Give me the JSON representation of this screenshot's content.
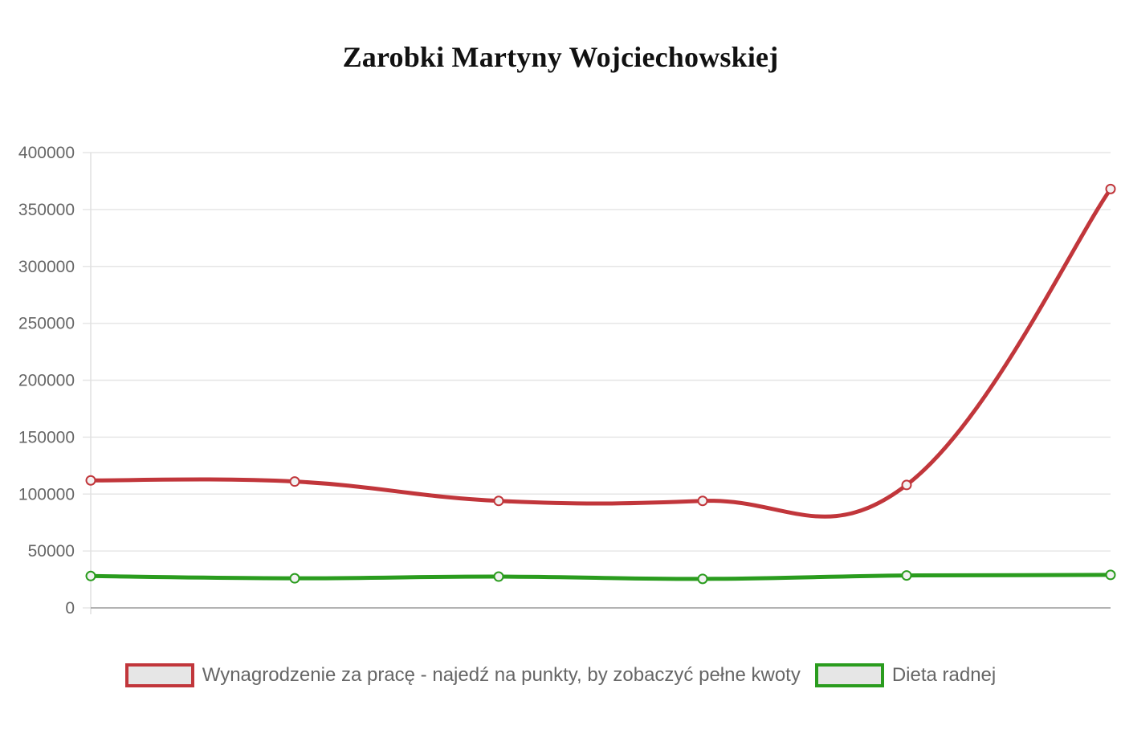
{
  "chart_data": {
    "type": "line",
    "title": "Zarobki Martyny Wojciechowskiej",
    "xlabel": "",
    "ylabel": "",
    "ylim": [
      0,
      400000
    ],
    "yticks": [
      "0",
      "50000",
      "100000",
      "150000",
      "200000",
      "250000",
      "300000",
      "350000",
      "400000"
    ],
    "x": [
      "",
      "",
      "",
      "",
      "",
      ""
    ],
    "grid": true,
    "legend_position": "bottom",
    "series": [
      {
        "name": "Wynagrodzenie za pracę - najedź na punkty, by zobaczyć pełne kwoty",
        "color": "#c1363b",
        "values": [
          112000,
          111000,
          94000,
          94000,
          108000,
          368000
        ]
      },
      {
        "name": "Dieta radnej",
        "color": "#2a9c1e",
        "values": [
          28000,
          26000,
          27500,
          25500,
          28500,
          29000
        ]
      }
    ]
  }
}
